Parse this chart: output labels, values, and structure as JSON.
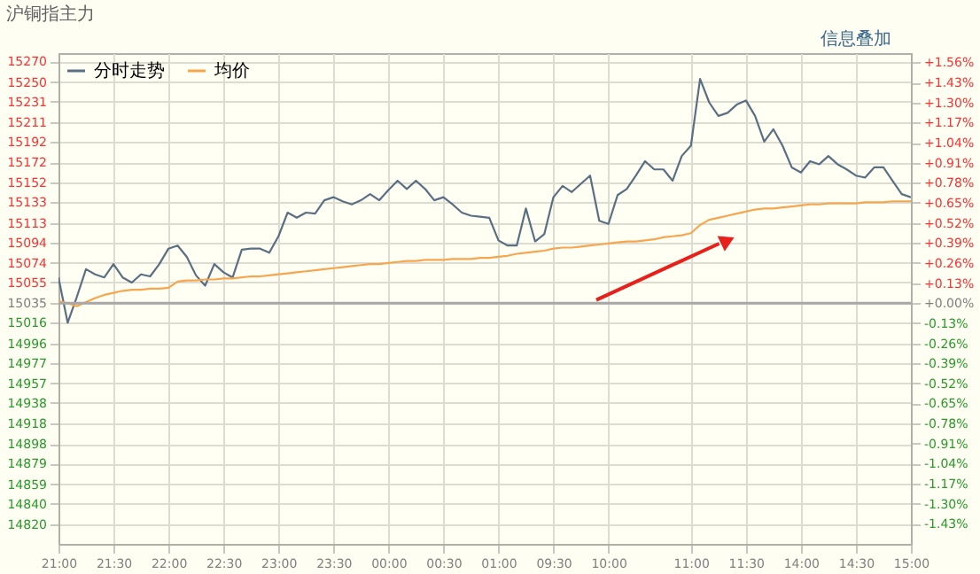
{
  "chart_data": {
    "type": "line",
    "title": "沪铜指主力",
    "annotations": [
      "信息叠加"
    ],
    "categories": [
      "21:00",
      null,
      null,
      null,
      null,
      null,
      "21:30",
      null,
      null,
      null,
      null,
      null,
      "22:00",
      null,
      null,
      null,
      null,
      null,
      "22:30",
      null,
      null,
      null,
      null,
      null,
      "23:00",
      null,
      null,
      null,
      null,
      null,
      "23:30",
      null,
      null,
      null,
      null,
      null,
      "00:00",
      null,
      null,
      null,
      null,
      null,
      "00:30",
      null,
      null,
      null,
      null,
      null,
      "01:00",
      null,
      null,
      null,
      null,
      null,
      "09:30",
      null,
      null,
      null,
      null,
      null,
      "10:00",
      null,
      null,
      null,
      null,
      null,
      null,
      null,
      null,
      "11:00",
      null,
      null,
      null,
      null,
      null,
      "11:30",
      null,
      null,
      null,
      null,
      null,
      "14:00",
      null,
      null,
      null,
      null,
      null,
      "14:30",
      null,
      null,
      null,
      null,
      null,
      "15:00"
    ],
    "ylim": [
      14801,
      15278
    ],
    "yticks": [
      15270,
      15250,
      15231,
      15211,
      15192,
      15172,
      15152,
      15133,
      15113,
      15094,
      15074,
      15055,
      15035,
      15016,
      14996,
      14977,
      14957,
      14938,
      14918,
      14898,
      14879,
      14859,
      14840,
      14820
    ],
    "y2lim": [
      -1.56,
      1.62
    ],
    "y2ticks": [
      {
        "value": 1.56,
        "label": "+1.56%"
      },
      {
        "value": 1.43,
        "label": "+1.43%"
      },
      {
        "value": 1.3,
        "label": "+1.30%"
      },
      {
        "value": 1.17,
        "label": "+1.17%"
      },
      {
        "value": 1.04,
        "label": "+1.04%"
      },
      {
        "value": 0.91,
        "label": "+0.91%"
      },
      {
        "value": 0.78,
        "label": "+0.78%"
      },
      {
        "value": 0.65,
        "label": "+0.65%"
      },
      {
        "value": 0.52,
        "label": "+0.52%"
      },
      {
        "value": 0.39,
        "label": "+0.39%"
      },
      {
        "value": 0.26,
        "label": "+0.26%"
      },
      {
        "value": 0.13,
        "label": "+0.13%"
      },
      {
        "value": 0,
        "label": "+0.00%"
      },
      {
        "value": -0.13,
        "label": "-0.13%"
      },
      {
        "value": -0.26,
        "label": "-0.26%"
      },
      {
        "value": -0.39,
        "label": "-0.39%"
      },
      {
        "value": -0.52,
        "label": "-0.52%"
      },
      {
        "value": -0.65,
        "label": "-0.65%"
      },
      {
        "value": -0.78,
        "label": "-0.78%"
      },
      {
        "value": -0.91,
        "label": "-0.91%"
      },
      {
        "value": -1.04,
        "label": "-1.04%"
      },
      {
        "value": -1.17,
        "label": "-1.17%"
      },
      {
        "value": -1.3,
        "label": "-1.30%"
      },
      {
        "value": -1.43,
        "label": "-1.43%"
      }
    ],
    "ref_lines": [
      {
        "axis": "y",
        "value": 15035,
        "color": "#a8a8a8"
      }
    ],
    "grid": true,
    "legend": "top left",
    "marker": "none",
    "line_style": "solid",
    "series": [
      {
        "name": "分时走势",
        "color": "#5b6f82",
        "values": [
          15060,
          15016,
          15041,
          15068,
          15063,
          15060,
          15073,
          15060,
          15055,
          15063,
          15061,
          15073,
          15088,
          15091,
          15080,
          15062,
          15052,
          15073,
          15065,
          15060,
          15087,
          15088,
          15088,
          15084,
          15100,
          15123,
          15118,
          15123,
          15122,
          15135,
          15138,
          15134,
          15131,
          15135,
          15141,
          15135,
          15145,
          15154,
          15146,
          15154,
          15146,
          15135,
          15138,
          15131,
          15123,
          15120,
          15119,
          15118,
          15096,
          15091,
          15091,
          15127,
          15095,
          15102,
          15138,
          15149,
          15143,
          15151,
          15159,
          15115,
          15112,
          15140,
          15146,
          15159,
          15173,
          15165,
          15165,
          15154,
          15178,
          15188,
          15253,
          15230,
          15217,
          15220,
          15228,
          15232,
          15217,
          15192,
          15204,
          15188,
          15167,
          15162,
          15173,
          15170,
          15178,
          15170,
          15165,
          15159,
          15157,
          15167,
          15167,
          15154,
          15141,
          15138
        ]
      },
      {
        "name": "均价",
        "color": "#f7a64f",
        "values": [
          15037,
          15035,
          15032,
          15036,
          15040,
          15043,
          15045,
          15047,
          15048,
          15048,
          15049,
          15049,
          15050,
          15056,
          15057,
          15057,
          15058,
          15058,
          15059,
          15059,
          15060,
          15061,
          15061,
          15062,
          15063,
          15064,
          15065,
          15066,
          15067,
          15068,
          15069,
          15070,
          15071,
          15072,
          15073,
          15073,
          15074,
          15075,
          15076,
          15076,
          15077,
          15077,
          15077,
          15078,
          15078,
          15078,
          15079,
          15079,
          15080,
          15081,
          15083,
          15084,
          15085,
          15086,
          15088,
          15089,
          15089,
          15090,
          15091,
          15092,
          15093,
          15094,
          15095,
          15095,
          15096,
          15097,
          15099,
          15100,
          15101,
          15103,
          15111,
          15116,
          15118,
          15120,
          15122,
          15124,
          15126,
          15127,
          15127,
          15128,
          15129,
          15130,
          15131,
          15131,
          15132,
          15132,
          15132,
          15132,
          15133,
          15133,
          15133,
          15134,
          15134,
          15134
        ]
      }
    ]
  }
}
